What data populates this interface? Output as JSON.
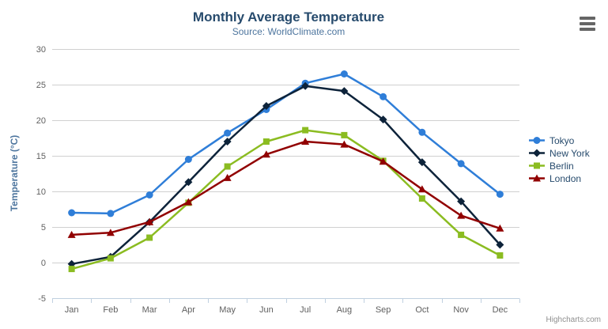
{
  "header": {
    "title": "Monthly Average Temperature",
    "subtitle": "Source: WorldClimate.com"
  },
  "credits": "Highcharts.com",
  "icons": {
    "menu": "hamburger-icon"
  },
  "colors": {
    "title": "#274b6d",
    "subtitle": "#4d759e",
    "axis_label": "#606060",
    "axis_line": "#c0d0e0",
    "gridline": "#d0d0d0",
    "legend_text": "#274b6d"
  },
  "chart_data": {
    "type": "line",
    "title": "Monthly Average Temperature",
    "subtitle": "Source: WorldClimate.com",
    "xlabel": "",
    "ylabel": "Temperature (°C)",
    "ylim": [
      -5,
      30
    ],
    "ytick_step": 5,
    "grid": true,
    "legend_position": "right",
    "categories": [
      "Jan",
      "Feb",
      "Mar",
      "Apr",
      "May",
      "Jun",
      "Jul",
      "Aug",
      "Sep",
      "Oct",
      "Nov",
      "Dec"
    ],
    "series": [
      {
        "name": "Tokyo",
        "color": "#2f7ed8",
        "marker": "circle",
        "values": [
          7.0,
          6.9,
          9.5,
          14.5,
          18.2,
          21.5,
          25.2,
          26.5,
          23.3,
          18.3,
          13.9,
          9.6
        ]
      },
      {
        "name": "New York",
        "color": "#0d233a",
        "marker": "diamond",
        "values": [
          -0.2,
          0.8,
          5.7,
          11.3,
          17.0,
          22.0,
          24.8,
          24.1,
          20.1,
          14.1,
          8.6,
          2.5
        ]
      },
      {
        "name": "Berlin",
        "color": "#8bbc21",
        "marker": "square",
        "values": [
          -0.9,
          0.6,
          3.5,
          8.4,
          13.5,
          17.0,
          18.6,
          17.9,
          14.3,
          9.0,
          3.9,
          1.0
        ]
      },
      {
        "name": "London",
        "color": "#910000",
        "marker": "triangle",
        "values": [
          3.9,
          4.2,
          5.7,
          8.5,
          11.9,
          15.2,
          17.0,
          16.6,
          14.2,
          10.3,
          6.6,
          4.8
        ]
      }
    ]
  }
}
